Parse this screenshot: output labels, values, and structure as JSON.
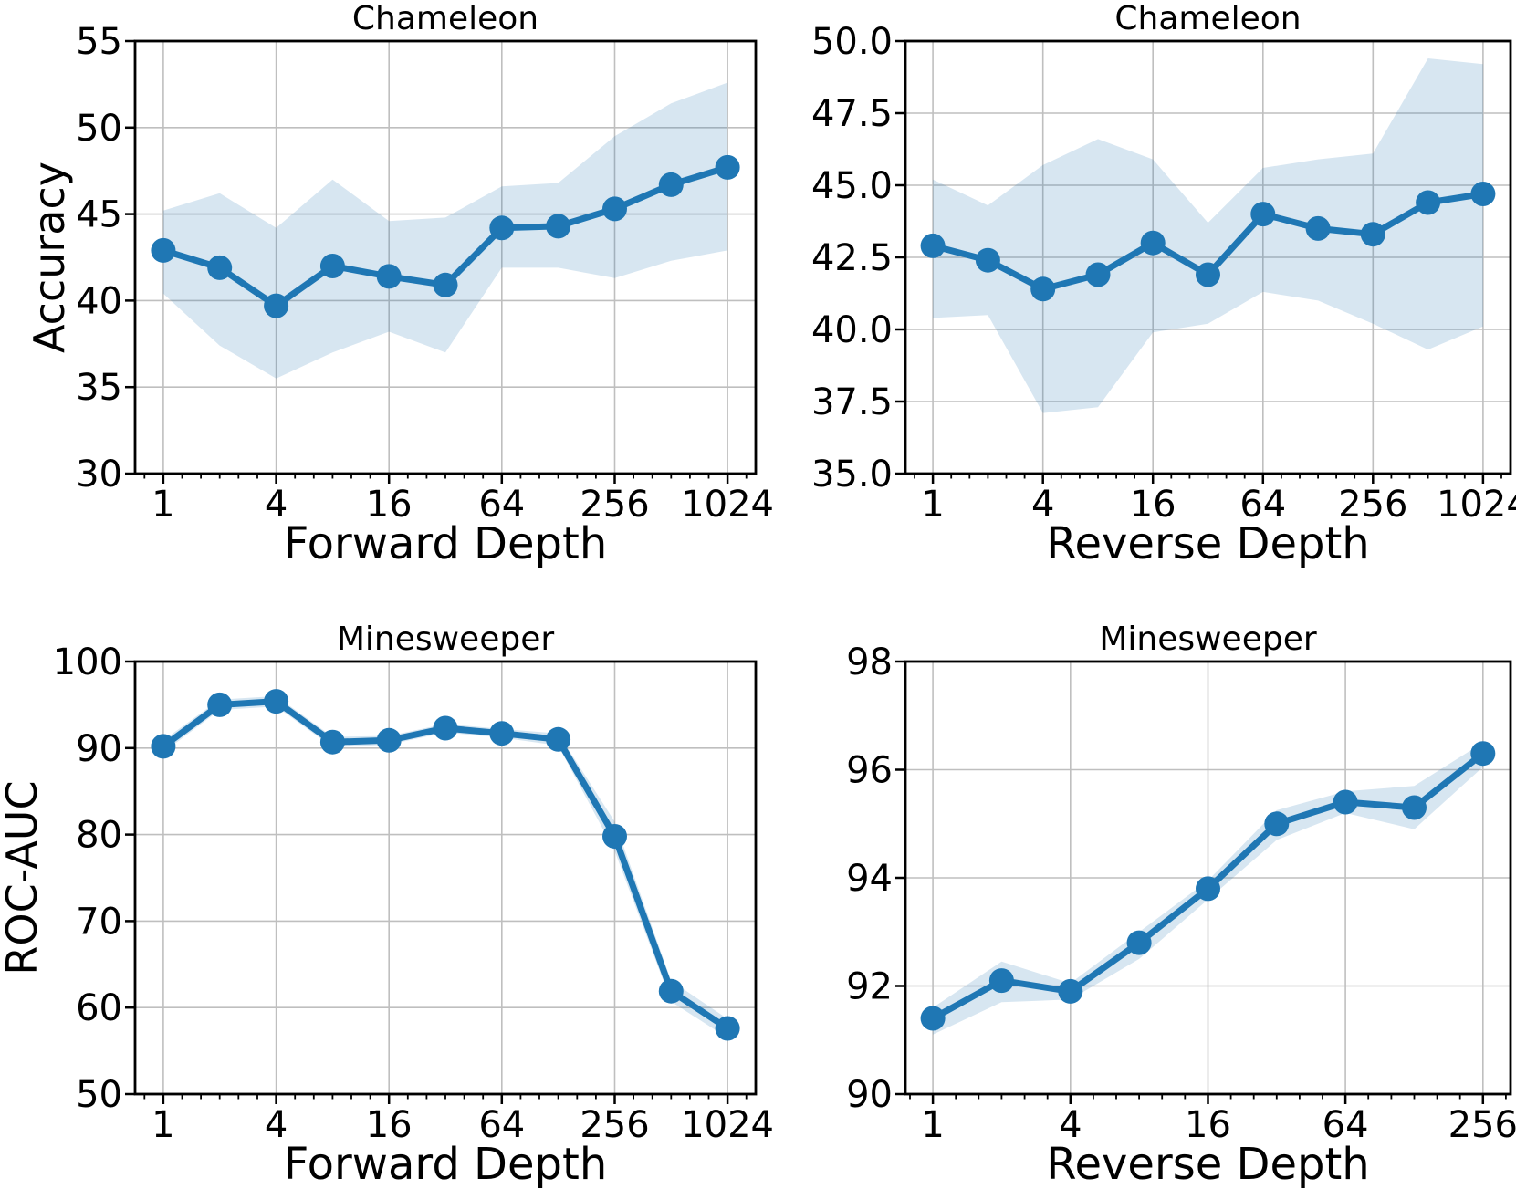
{
  "figure": {
    "background": "#ffffff"
  },
  "style": {
    "line_color": "#1f77b4",
    "band_fill": "#1f77b4",
    "band_opacity": 0.18,
    "grid_color": "#bfbfbf",
    "spine_color": "#000000",
    "text_color": "#000000"
  },
  "chart_data": [
    {
      "name": "chameleon-forward",
      "type": "line",
      "title": "Chameleon",
      "xlabel": "Forward Depth",
      "ylabel": "Accuracy",
      "x_scale": "log2",
      "grid": true,
      "legend": "none",
      "x": [
        1,
        2,
        4,
        8,
        16,
        32,
        64,
        128,
        256,
        512,
        1024
      ],
      "series": [
        {
          "name": "mean",
          "y": [
            42.9,
            41.9,
            39.7,
            42.0,
            41.4,
            40.9,
            44.2,
            44.3,
            45.3,
            46.7,
            47.7
          ]
        }
      ],
      "band": {
        "lower": [
          40.4,
          37.4,
          35.5,
          37.0,
          38.2,
          37.0,
          41.9,
          41.9,
          41.3,
          42.3,
          42.9
        ],
        "upper": [
          45.2,
          46.2,
          44.2,
          47.0,
          44.6,
          44.8,
          46.6,
          46.8,
          49.5,
          51.4,
          52.6
        ]
      },
      "xlim": [
        0.707,
        1448
      ],
      "ylim": [
        30,
        55
      ],
      "xticks": {
        "values": [
          1,
          4,
          16,
          64,
          256,
          1024
        ],
        "labels": [
          "1",
          "4",
          "16",
          "64",
          "256",
          "1024"
        ]
      },
      "yticks": {
        "values": [
          30,
          35,
          40,
          45,
          50,
          55
        ],
        "labels": [
          "30",
          "35",
          "40",
          "45",
          "50",
          "55"
        ]
      }
    },
    {
      "name": "chameleon-reverse",
      "type": "line",
      "title": "Chameleon",
      "xlabel": "Reverse Depth",
      "ylabel": "",
      "x_scale": "log2",
      "grid": true,
      "legend": "none",
      "x": [
        1,
        2,
        4,
        8,
        16,
        32,
        64,
        128,
        256,
        512,
        1024
      ],
      "series": [
        {
          "name": "mean",
          "y": [
            42.9,
            42.4,
            41.4,
            41.9,
            43.0,
            41.9,
            44.0,
            43.5,
            43.3,
            44.4,
            44.7
          ]
        }
      ],
      "band": {
        "lower": [
          40.4,
          40.5,
          37.1,
          37.3,
          39.9,
          40.2,
          41.3,
          41.0,
          40.2,
          39.3,
          40.1
        ],
        "upper": [
          45.2,
          44.3,
          45.7,
          46.6,
          45.9,
          43.7,
          45.6,
          45.9,
          46.1,
          49.4,
          49.2
        ]
      },
      "xlim": [
        0.707,
        1448
      ],
      "ylim": [
        35,
        50
      ],
      "xticks": {
        "values": [
          1,
          4,
          16,
          64,
          256,
          1024
        ],
        "labels": [
          "1",
          "4",
          "16",
          "64",
          "256",
          "1024"
        ]
      },
      "yticks": {
        "values": [
          35,
          37.5,
          40,
          42.5,
          45,
          47.5,
          50
        ],
        "labels": [
          "35.0",
          "37.5",
          "40.0",
          "42.5",
          "45.0",
          "47.5",
          "50.0"
        ]
      }
    },
    {
      "name": "minesweeper-forward",
      "type": "line",
      "title": "Minesweeper",
      "xlabel": "Forward Depth",
      "ylabel": "ROC-AUC",
      "x_scale": "log2",
      "grid": true,
      "legend": "none",
      "x": [
        1,
        2,
        4,
        8,
        16,
        32,
        64,
        128,
        256,
        512,
        1024
      ],
      "series": [
        {
          "name": "mean",
          "y": [
            90.2,
            95.0,
            95.4,
            90.7,
            90.9,
            92.3,
            91.7,
            91.0,
            79.8,
            61.9,
            57.6
          ]
        }
      ],
      "band": {
        "lower": [
          89.5,
          94.4,
          94.8,
          90.1,
          90.4,
          91.8,
          91.2,
          90.3,
          78.1,
          60.7,
          56.5
        ],
        "upper": [
          90.9,
          95.6,
          96.0,
          91.3,
          91.4,
          92.8,
          92.2,
          91.7,
          81.5,
          63.1,
          58.7
        ]
      },
      "xlim": [
        0.707,
        1448
      ],
      "ylim": [
        50,
        100
      ],
      "xticks": {
        "values": [
          1,
          4,
          16,
          64,
          256,
          1024
        ],
        "labels": [
          "1",
          "4",
          "16",
          "64",
          "256",
          "1024"
        ]
      },
      "yticks": {
        "values": [
          50,
          60,
          70,
          80,
          90,
          100
        ],
        "labels": [
          "50",
          "60",
          "70",
          "80",
          "90",
          "100"
        ]
      }
    },
    {
      "name": "minesweeper-reverse",
      "type": "line",
      "title": "Minesweeper",
      "xlabel": "Reverse Depth",
      "ylabel": "",
      "x_scale": "log2",
      "grid": true,
      "legend": "none",
      "x": [
        1,
        2,
        4,
        8,
        16,
        32,
        64,
        128,
        256
      ],
      "series": [
        {
          "name": "mean",
          "y": [
            91.4,
            92.1,
            91.9,
            92.8,
            93.8,
            95.0,
            95.4,
            95.3,
            96.3
          ]
        }
      ],
      "band": {
        "lower": [
          91.1,
          91.7,
          91.75,
          92.5,
          93.6,
          94.7,
          95.2,
          94.9,
          96.05
        ],
        "upper": [
          91.6,
          92.45,
          92.05,
          93.0,
          93.95,
          95.25,
          95.6,
          95.7,
          96.5
        ]
      },
      "xlim": [
        0.758,
        338
      ],
      "ylim": [
        90,
        98
      ],
      "xticks": {
        "values": [
          1,
          4,
          16,
          64,
          256
        ],
        "labels": [
          "1",
          "4",
          "16",
          "64",
          "256"
        ]
      },
      "yticks": {
        "values": [
          90,
          92,
          94,
          96,
          98
        ],
        "labels": [
          "90",
          "92",
          "94",
          "96",
          "98"
        ]
      }
    }
  ]
}
